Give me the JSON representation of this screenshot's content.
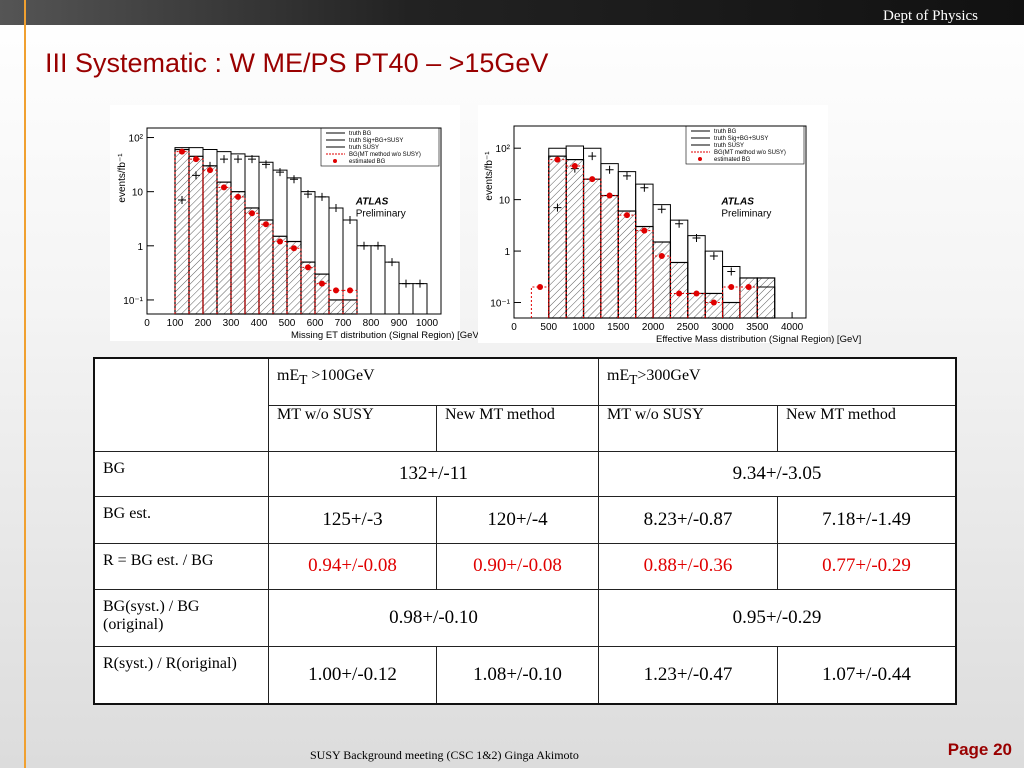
{
  "header": {
    "dept": "Dept of Physics",
    "title": "III Systematic : W ME/PS PT40 – >15GeV"
  },
  "chart_data": [
    {
      "type": "histogram",
      "x_label": "Missing  ET distribution (Signal Region) [GeV]",
      "y_label": "events/fb⁻¹",
      "xlim": [
        0,
        1050
      ],
      "ylim": [
        0.055,
        150
      ],
      "log_y": true,
      "legend": "upper right",
      "xticks": [
        0,
        100,
        200,
        300,
        400,
        500,
        600,
        700,
        800,
        900,
        1000
      ],
      "yticks": [
        {
          "value": 0.1,
          "label": "10⁻¹"
        },
        1,
        10,
        {
          "value": 100,
          "label": "10²"
        }
      ],
      "bins": [
        100,
        150,
        200,
        250,
        300,
        350,
        400,
        450,
        500,
        550,
        600,
        650,
        700,
        750,
        800,
        850,
        900,
        950,
        1000
      ],
      "series": [
        {
          "name": "truth BG",
          "color": "#000000",
          "style": "hatched",
          "values": [
            60,
            45,
            30,
            15,
            10,
            5,
            3,
            1.5,
            1.2,
            0.5,
            0.3,
            0.1,
            0.1,
            null,
            null,
            null,
            null,
            null
          ]
        },
        {
          "name": "truth Sig+BG+SUSY",
          "color": "#000000",
          "style": "step",
          "values": [
            65,
            65,
            60,
            55,
            50,
            45,
            35,
            25,
            18,
            10,
            8,
            5,
            3,
            1,
            1,
            0.5,
            0.2,
            0.2
          ]
        },
        {
          "name": "truth SUSY",
          "color": "#000000",
          "style": "crosses",
          "values": [
            7,
            20,
            30,
            40,
            40,
            40,
            32,
            23,
            17,
            9,
            8,
            5,
            3,
            1,
            1,
            0.5,
            0.2,
            0.2
          ]
        },
        {
          "name": "BG(MT method w/o SUSY)",
          "color": "#e00000",
          "style": "dotted",
          "values": [
            55,
            40,
            25,
            12,
            8,
            4,
            2.5,
            1.2,
            0.9,
            0.4,
            0.2,
            0.15,
            0.15,
            null,
            null,
            null,
            null,
            null
          ]
        },
        {
          "name": "estimated BG",
          "color": "#e00000",
          "style": "points",
          "values": [
            55,
            40,
            25,
            12,
            8,
            4,
            2.5,
            1.2,
            0.9,
            0.4,
            0.2,
            0.15,
            0.15,
            null,
            null,
            null,
            null,
            null
          ]
        }
      ],
      "annotation": {
        "brand": "ATLAS",
        "text": "Preliminary"
      }
    },
    {
      "type": "histogram",
      "x_label": "Effective  Mass  distribution (Signal Region) [GeV]",
      "y_label": "events/fb⁻¹",
      "xlim": [
        0,
        4200
      ],
      "ylim": [
        0.05,
        270
      ],
      "log_y": true,
      "legend": "upper right",
      "xticks": [
        0,
        500,
        1000,
        1500,
        2000,
        2500,
        3000,
        3500,
        4000
      ],
      "yticks": [
        {
          "value": 0.1,
          "label": "10⁻¹"
        },
        1,
        10,
        {
          "value": 100,
          "label": "10²"
        }
      ],
      "bins": [
        250,
        500,
        750,
        1000,
        1250,
        1500,
        1750,
        2000,
        2250,
        2500,
        2750,
        3000,
        3250,
        3500,
        3750,
        4000
      ],
      "series": [
        {
          "name": "truth BG",
          "color": "#000000",
          "style": "hatched",
          "values": [
            null,
            70,
            60,
            25,
            12,
            6,
            3,
            1.5,
            0.6,
            0.15,
            0.15,
            0.1,
            0.3,
            0.3,
            null
          ]
        },
        {
          "name": "truth Sig+BG+SUSY",
          "color": "#000000",
          "style": "step",
          "values": [
            null,
            100,
            110,
            100,
            50,
            35,
            20,
            8,
            4,
            2,
            1,
            0.5,
            0.3,
            0.2,
            null
          ]
        },
        {
          "name": "truth SUSY",
          "color": "#000000",
          "style": "crosses",
          "values": [
            null,
            7,
            40,
            70,
            38,
            29,
            17,
            6.5,
            3.4,
            1.8,
            0.8,
            0.4,
            null,
            null,
            null
          ]
        },
        {
          "name": "BG(MT method w/o SUSY)",
          "color": "#e00000",
          "style": "dotted",
          "values": [
            0.2,
            60,
            45,
            25,
            12,
            5,
            2.5,
            0.8,
            0.15,
            0.15,
            0.1,
            0.2,
            0.2,
            null,
            null
          ]
        },
        {
          "name": "estimated BG",
          "color": "#e00000",
          "style": "points",
          "values": [
            0.2,
            60,
            45,
            25,
            12,
            5,
            2.5,
            0.8,
            0.15,
            0.15,
            0.1,
            0.2,
            0.2,
            null,
            null
          ]
        }
      ],
      "annotation": {
        "brand": "ATLAS",
        "text": "Preliminary"
      }
    }
  ],
  "table": {
    "groups": [
      {
        "label": "mE",
        "sub": "T",
        "unit": " >100GeV"
      },
      {
        "label": "mE",
        "sub": "T",
        "unit": ">300GeV"
      }
    ],
    "subheaders": [
      "MT w/o SUSY",
      "New MT method",
      "MT w/o SUSY",
      "New MT method"
    ],
    "rows": [
      {
        "label": "BG",
        "values": [
          "132+/-11",
          "9.34+/-3.05"
        ]
      },
      {
        "label": "BG est.",
        "values": [
          "125+/-3",
          "120+/-4",
          "8.23+/-0.87",
          "7.18+/-1.49"
        ]
      },
      {
        "label": "R = BG est. / BG",
        "values": [
          "0.94+/-0.08",
          "0.90+/-0.08",
          "0.88+/-0.36",
          "0.77+/-0.29"
        ]
      },
      {
        "label": "BG(syst.) / BG (original)",
        "values": [
          "0.98+/-0.10",
          "0.95+/-0.29"
        ]
      },
      {
        "label": "R(syst.) / R(original)",
        "values": [
          "1.00+/-0.12",
          "1.08+/-0.10",
          "1.23+/-0.47",
          "1.07+/-0.44"
        ]
      }
    ]
  },
  "footer": {
    "text": "SUSY Background meeting  (CSC 1&2) Ginga Akimoto",
    "page": "Page 20"
  }
}
